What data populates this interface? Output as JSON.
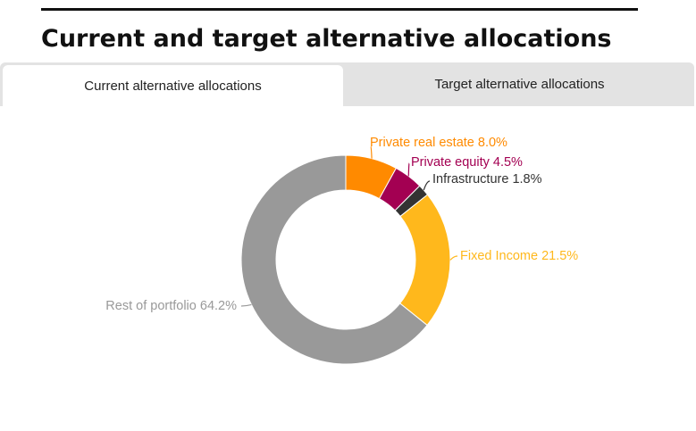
{
  "page": {
    "title": "Current and target alternative allocations"
  },
  "tabs": [
    {
      "label": "Current alternative allocations",
      "active": true
    },
    {
      "label": "Target alternative allocations",
      "active": false
    }
  ],
  "chart_data": {
    "type": "pie",
    "donut": true,
    "title": "",
    "segments": [
      {
        "name": "Private real estate",
        "value": 8.0,
        "label": "Private real estate 8.0%",
        "color": "#ff8a00"
      },
      {
        "name": "Private equity",
        "value": 4.5,
        "label": "Private equity 4.5%",
        "color": "#a30052"
      },
      {
        "name": "Infrastructure",
        "value": 1.8,
        "label": "Infrastructure 1.8%",
        "color": "#333333"
      },
      {
        "name": "Fixed Income",
        "value": 21.5,
        "label": "Fixed Income 21.5%",
        "color": "#ffb81c"
      },
      {
        "name": "Rest of portfolio",
        "value": 64.2,
        "label": "Rest of portfolio 64.2%",
        "color": "#999999"
      }
    ]
  }
}
